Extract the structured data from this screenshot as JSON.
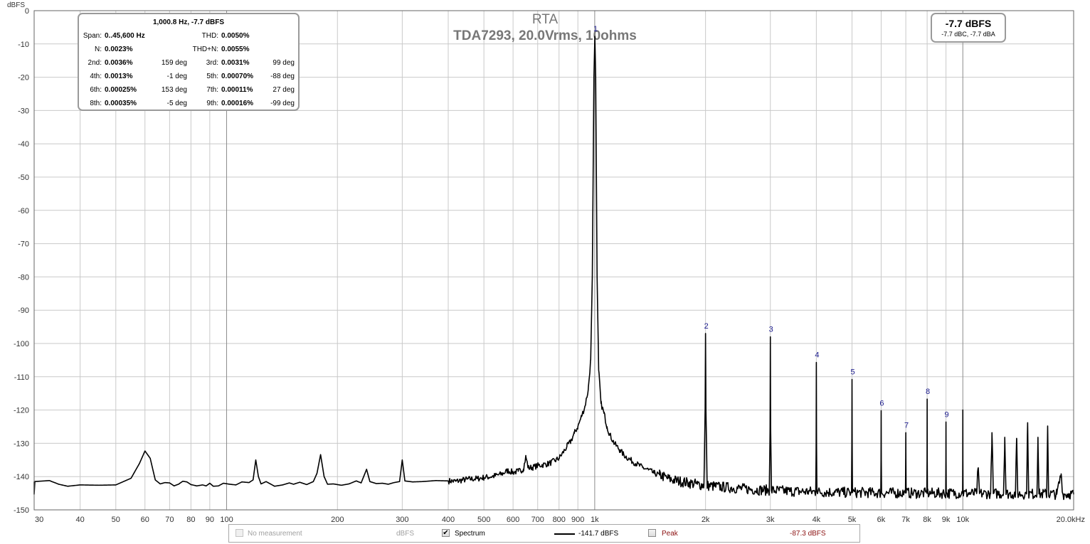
{
  "chart_data": {
    "type": "line",
    "title": "RTA",
    "subtitle": "TDA7293, 20.0Vrms, 10ohms",
    "ylabel": "dBFS",
    "xscale": "log",
    "xlim": [
      30,
      20000
    ],
    "ylim": [
      -150,
      0
    ],
    "grid": true,
    "yticks": [
      0,
      -10,
      -20,
      -30,
      -40,
      -50,
      -60,
      -70,
      -80,
      -90,
      -100,
      -110,
      -120,
      -130,
      -140,
      -150
    ],
    "xticks": [
      {
        "v": 30,
        "label": "30"
      },
      {
        "v": 40,
        "label": "40"
      },
      {
        "v": 50,
        "label": "50"
      },
      {
        "v": 60,
        "label": "60"
      },
      {
        "v": 70,
        "label": "70"
      },
      {
        "v": 80,
        "label": "80"
      },
      {
        "v": 90,
        "label": "90"
      },
      {
        "v": 100,
        "label": "100"
      },
      {
        "v": 200,
        "label": "200"
      },
      {
        "v": 300,
        "label": "300"
      },
      {
        "v": 400,
        "label": "400"
      },
      {
        "v": 500,
        "label": "500"
      },
      {
        "v": 600,
        "label": "600"
      },
      {
        "v": 700,
        "label": "700"
      },
      {
        "v": 800,
        "label": "800"
      },
      {
        "v": 900,
        "label": "900"
      },
      {
        "v": 1000,
        "label": "1k"
      },
      {
        "v": 2000,
        "label": "2k"
      },
      {
        "v": 3000,
        "label": "3k"
      },
      {
        "v": 4000,
        "label": "4k"
      },
      {
        "v": 5000,
        "label": "5k"
      },
      {
        "v": 6000,
        "label": "6k"
      },
      {
        "v": 7000,
        "label": "7k"
      },
      {
        "v": 8000,
        "label": "8k"
      },
      {
        "v": 9000,
        "label": "9k"
      },
      {
        "v": 10000,
        "label": "10k"
      },
      {
        "v": 20000,
        "label": "20.0kHz"
      }
    ],
    "series": [
      {
        "color": "#000000",
        "points": [
          [
            30,
            -141.5
          ],
          [
            33,
            -141.2
          ],
          [
            35,
            -142.3
          ],
          [
            37,
            -142.9
          ],
          [
            40,
            -142.5
          ],
          [
            45,
            -142.6
          ],
          [
            50,
            -142.5
          ],
          [
            55,
            -140.5
          ],
          [
            58,
            -136
          ],
          [
            60,
            -132.3
          ],
          [
            62,
            -134.5
          ],
          [
            64,
            -141
          ],
          [
            66,
            -142.2
          ],
          [
            68,
            -141.8
          ],
          [
            70,
            -141.9
          ],
          [
            72,
            -142.8
          ],
          [
            74,
            -142.3
          ],
          [
            76,
            -141.4
          ],
          [
            78,
            -141.6
          ],
          [
            80,
            -142.4
          ],
          [
            83,
            -142.8
          ],
          [
            86,
            -142.5
          ],
          [
            88,
            -142.8
          ],
          [
            90,
            -142
          ],
          [
            92,
            -142.9
          ],
          [
            95,
            -142.8
          ],
          [
            98,
            -142
          ],
          [
            102,
            -142.3
          ],
          [
            106,
            -142.5
          ],
          [
            110,
            -141.6
          ],
          [
            115,
            -141.8
          ],
          [
            118,
            -141
          ],
          [
            120,
            -135
          ],
          [
            122,
            -140
          ],
          [
            124,
            -142.2
          ],
          [
            128,
            -141.5
          ],
          [
            135,
            -142.9
          ],
          [
            142,
            -142.5
          ],
          [
            148,
            -141.9
          ],
          [
            152,
            -142.3
          ],
          [
            158,
            -141.7
          ],
          [
            165,
            -142.4
          ],
          [
            172,
            -141.5
          ],
          [
            176,
            -139
          ],
          [
            180,
            -133.4
          ],
          [
            184,
            -140
          ],
          [
            188,
            -142.3
          ],
          [
            195,
            -142.2
          ],
          [
            205,
            -142.6
          ],
          [
            215,
            -142.2
          ],
          [
            225,
            -141.3
          ],
          [
            232,
            -141.9
          ],
          [
            240,
            -137.8
          ],
          [
            245,
            -141.5
          ],
          [
            255,
            -142.1
          ],
          [
            265,
            -142
          ],
          [
            275,
            -142.3
          ],
          [
            285,
            -141.8
          ],
          [
            295,
            -141.5
          ],
          [
            300,
            -135
          ],
          [
            305,
            -141.3
          ],
          [
            320,
            -141.6
          ],
          [
            340,
            -141.5
          ],
          [
            370,
            -141.2
          ],
          [
            400,
            -141.3
          ],
          [
            420,
            -141.4
          ],
          [
            450,
            -140.8
          ],
          [
            480,
            -140.6
          ],
          [
            500,
            -140.3
          ],
          [
            530,
            -139.9
          ],
          [
            560,
            -139.2
          ],
          [
            580,
            -138.2
          ],
          [
            600,
            -138.7
          ],
          [
            620,
            -138.4
          ],
          [
            640,
            -137.8
          ],
          [
            650,
            -134
          ],
          [
            660,
            -137.4
          ],
          [
            680,
            -137.2
          ],
          [
            700,
            -136.7
          ],
          [
            720,
            -136.5
          ],
          [
            750,
            -136.1
          ],
          [
            780,
            -135.2
          ],
          [
            800,
            -134.5
          ],
          [
            820,
            -132.8
          ],
          [
            840,
            -131
          ],
          [
            860,
            -129.5
          ],
          [
            880,
            -127
          ],
          [
            900,
            -125
          ],
          [
            920,
            -122
          ],
          [
            940,
            -119
          ],
          [
            960,
            -114
          ],
          [
            975,
            -105
          ],
          [
            985,
            -80
          ],
          [
            995,
            -20
          ],
          [
            1000.8,
            -7.7
          ],
          [
            1006,
            -20
          ],
          [
            1015,
            -80
          ],
          [
            1025,
            -108
          ],
          [
            1040,
            -118
          ],
          [
            1060,
            -121
          ],
          [
            1080,
            -125
          ],
          [
            1100,
            -127.5
          ],
          [
            1130,
            -130
          ],
          [
            1170,
            -132
          ],
          [
            1200,
            -133.5
          ],
          [
            1250,
            -135
          ],
          [
            1300,
            -136.2
          ],
          [
            1350,
            -137.3
          ],
          [
            1400,
            -138
          ],
          [
            1450,
            -139
          ],
          [
            1500,
            -139.5
          ],
          [
            1600,
            -140.8
          ],
          [
            1700,
            -141.4
          ],
          [
            1800,
            -141.9
          ],
          [
            1900,
            -142.3
          ],
          [
            1980,
            -142.6
          ],
          [
            1995,
            -120
          ],
          [
            2000,
            -97
          ],
          [
            2005,
            -120
          ],
          [
            2020,
            -142.7
          ],
          [
            2200,
            -143.1
          ],
          [
            2500,
            -143.6
          ],
          [
            2800,
            -144
          ],
          [
            2980,
            -144.1
          ],
          [
            2995,
            -125
          ],
          [
            3000,
            -98
          ],
          [
            3005,
            -125
          ],
          [
            3020,
            -144.1
          ],
          [
            3400,
            -144.4
          ],
          [
            3800,
            -144.5
          ],
          [
            3985,
            -144.6
          ],
          [
            3995,
            -130
          ],
          [
            4000,
            -105.7
          ],
          [
            4005,
            -130
          ],
          [
            4015,
            -144.6
          ],
          [
            4500,
            -144.7
          ],
          [
            4985,
            -144.8
          ],
          [
            4995,
            -130
          ],
          [
            5000,
            -110.8
          ],
          [
            5005,
            -130
          ],
          [
            5015,
            -144.8
          ],
          [
            5500,
            -144.8
          ],
          [
            5985,
            -144.9
          ],
          [
            5995,
            -135
          ],
          [
            6000,
            -120.2
          ],
          [
            6005,
            -135
          ],
          [
            6015,
            -144.9
          ],
          [
            6500,
            -144.9
          ],
          [
            6985,
            -144.9
          ],
          [
            6995,
            -135
          ],
          [
            7000,
            -126.8
          ],
          [
            7005,
            -135
          ],
          [
            7015,
            -144.9
          ],
          [
            7500,
            -145
          ],
          [
            7985,
            -145
          ],
          [
            7995,
            -135
          ],
          [
            8000,
            -116.7
          ],
          [
            8005,
            -135
          ],
          [
            8015,
            -145
          ],
          [
            8500,
            -145
          ],
          [
            8985,
            -145
          ],
          [
            8995,
            -135
          ],
          [
            9000,
            -123.6
          ],
          [
            9005,
            -135
          ],
          [
            9015,
            -145
          ],
          [
            9500,
            -145
          ],
          [
            9985,
            -145
          ],
          [
            9995,
            -135
          ],
          [
            10000,
            -120
          ],
          [
            10005,
            -135
          ],
          [
            10015,
            -145
          ],
          [
            10900,
            -145.1
          ],
          [
            11000,
            -137.5
          ],
          [
            11100,
            -145.1
          ],
          [
            11900,
            -145.1
          ],
          [
            12000,
            -126.8
          ],
          [
            12100,
            -145.1
          ],
          [
            12900,
            -145.1
          ],
          [
            13000,
            -128.2
          ],
          [
            13100,
            -145.1
          ],
          [
            13900,
            -145.2
          ],
          [
            14000,
            -128.5
          ],
          [
            14100,
            -145.2
          ],
          [
            14900,
            -145.2
          ],
          [
            15000,
            -123.8
          ],
          [
            15100,
            -145.2
          ],
          [
            15900,
            -145.2
          ],
          [
            16000,
            -128.2
          ],
          [
            16100,
            -145.2
          ],
          [
            16900,
            -145.2
          ],
          [
            17000,
            -124.8
          ],
          [
            17100,
            -145.2
          ],
          [
            18000,
            -145.3
          ],
          [
            18500,
            -139.2
          ],
          [
            18700,
            -145.3
          ],
          [
            19500,
            -145.2
          ],
          [
            20000,
            -145.3
          ]
        ]
      }
    ],
    "harmonic_markers": [
      {
        "label": "1",
        "freq": 1000.8,
        "level": -7.7
      },
      {
        "label": "2",
        "freq": 2000,
        "level": -97
      },
      {
        "label": "3",
        "freq": 3000,
        "level": -98
      },
      {
        "label": "4",
        "freq": 4000,
        "level": -105.7
      },
      {
        "label": "5",
        "freq": 5000,
        "level": -110.8
      },
      {
        "label": "6",
        "freq": 6000,
        "level": -120.2
      },
      {
        "label": "7",
        "freq": 7000,
        "level": -126.8
      },
      {
        "label": "8",
        "freq": 8000,
        "level": -116.7
      },
      {
        "label": "9",
        "freq": 9000,
        "level": -123.6
      }
    ],
    "legend_position": "bottom"
  },
  "colors": {
    "grid": "#c9c9c9",
    "major_grid": "#8c8c8c",
    "trace": "#000000",
    "harmonic_label": "#1a1a8c",
    "title": "#777777",
    "peak": "#8b1010"
  },
  "stats": {
    "header": "1,000.8 Hz, -7.7 dBFS",
    "rows": [
      {
        "l1": "Span:",
        "v1": "0..45,600 Hz",
        "p1": "",
        "l2": "THD:",
        "v2": "0.0050%",
        "p2": ""
      },
      {
        "l1": "N:",
        "v1": "0.0023%",
        "p1": "",
        "l2": "THD+N:",
        "v2": "0.0055%",
        "p2": ""
      },
      {
        "l1": "2nd:",
        "v1": "0.0036%",
        "p1": "159 deg",
        "l2": "3rd:",
        "v2": "0.0031%",
        "p2": "99 deg"
      },
      {
        "l1": "4th:",
        "v1": "0.0013%",
        "p1": "-1 deg",
        "l2": "5th:",
        "v2": "0.00070%",
        "p2": "-88 deg"
      },
      {
        "l1": "6th:",
        "v1": "0.00025%",
        "p1": "153 deg",
        "l2": "7th:",
        "v2": "0.00011%",
        "p2": "27 deg"
      },
      {
        "l1": "8th:",
        "v1": "0.00035%",
        "p1": "-5 deg",
        "l2": "9th:",
        "v2": "0.00016%",
        "p2": "-99 deg"
      }
    ]
  },
  "level": {
    "main": "-7.7 dBFS",
    "sub": "-7.7 dBC, -7.7 dBA"
  },
  "legend": {
    "no_measurement": "No measurement",
    "no_measurement_unit": "dBFS",
    "spectrum": "Spectrum",
    "spectrum_checked": true,
    "spectrum_value": "-141.7 dBFS",
    "peak": "Peak",
    "peak_checked": false,
    "peak_value": "-87.3 dBFS"
  }
}
